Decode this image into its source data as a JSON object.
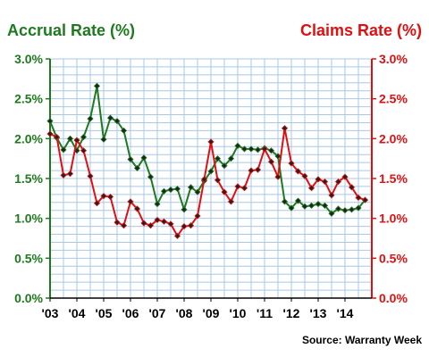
{
  "chart_data": {
    "type": "line",
    "left_title": "Accrual Rate (%)",
    "right_title": "Claims Rate (%)",
    "source": "Source: Warranty Week",
    "colors": {
      "accrual": "#1e7a1e",
      "claims": "#e01010",
      "grid": "#a9c8e6"
    },
    "x_range": [
      2003.0,
      2015.0
    ],
    "x_tick_labels": [
      "'03",
      "'04",
      "'05",
      "'06",
      "'07",
      "'08",
      "'09",
      "'10",
      "'11",
      "'12",
      "'13",
      "'14"
    ],
    "ylim_left": [
      0,
      3.0
    ],
    "ylim_right": [
      0,
      3.0
    ],
    "y_tick_values": [
      0.0,
      0.5,
      1.0,
      1.5,
      2.0,
      2.5,
      3.0
    ],
    "y_tick_labels": [
      "0.0%",
      "0.5%",
      "1.0%",
      "1.5%",
      "2.0%",
      "2.5%",
      "3.0%"
    ],
    "grid": true,
    "series": [
      {
        "key": "accrual",
        "axis": "left",
        "x": [
          2003.0,
          2003.25,
          2003.5,
          2003.75,
          2004.0,
          2004.25,
          2004.5,
          2004.75,
          2005.0,
          2005.25,
          2005.5,
          2005.75,
          2006.0,
          2006.25,
          2006.5,
          2006.75,
          2007.0,
          2007.25,
          2007.5,
          2007.75,
          2008.0,
          2008.25,
          2008.5,
          2008.75,
          2009.0,
          2009.25,
          2009.5,
          2009.75,
          2010.0,
          2010.25,
          2010.5,
          2010.75,
          2011.0,
          2011.25,
          2011.5,
          2011.75,
          2012.0,
          2012.25,
          2012.5,
          2012.75,
          2013.0,
          2013.25,
          2013.5,
          2013.75,
          2014.0,
          2014.25,
          2014.5,
          2014.75
        ],
        "values": [
          2.22,
          2.01,
          1.86,
          2.0,
          1.85,
          2.02,
          2.25,
          2.66,
          1.99,
          2.26,
          2.22,
          2.1,
          1.74,
          1.63,
          1.76,
          1.52,
          1.18,
          1.34,
          1.36,
          1.37,
          1.11,
          1.39,
          1.33,
          1.47,
          1.59,
          1.75,
          1.66,
          1.75,
          1.91,
          1.87,
          1.87,
          1.86,
          1.88,
          1.85,
          1.78,
          1.21,
          1.13,
          1.22,
          1.15,
          1.16,
          1.18,
          1.16,
          1.06,
          1.12,
          1.1,
          1.11,
          1.13,
          1.23
        ]
      },
      {
        "key": "claims",
        "axis": "right",
        "x": [
          2003.0,
          2003.25,
          2003.5,
          2003.75,
          2004.0,
          2004.25,
          2004.5,
          2004.75,
          2005.0,
          2005.25,
          2005.5,
          2005.75,
          2006.0,
          2006.25,
          2006.5,
          2006.75,
          2007.0,
          2007.25,
          2007.5,
          2007.75,
          2008.0,
          2008.25,
          2008.5,
          2008.75,
          2009.0,
          2009.25,
          2009.5,
          2009.75,
          2010.0,
          2010.25,
          2010.5,
          2010.75,
          2011.0,
          2011.25,
          2011.5,
          2011.75,
          2012.0,
          2012.25,
          2012.5,
          2012.75,
          2013.0,
          2013.25,
          2013.5,
          2013.75,
          2014.0,
          2014.25,
          2014.5,
          2014.75
        ],
        "values": [
          2.06,
          2.02,
          1.54,
          1.56,
          1.98,
          1.85,
          1.53,
          1.19,
          1.28,
          1.27,
          0.95,
          0.91,
          1.21,
          1.12,
          0.94,
          0.91,
          0.98,
          0.96,
          0.93,
          0.78,
          0.9,
          0.91,
          1.03,
          1.49,
          1.96,
          1.48,
          1.33,
          1.21,
          1.4,
          1.38,
          1.6,
          1.61,
          1.87,
          1.71,
          1.52,
          2.13,
          1.69,
          1.59,
          1.53,
          1.38,
          1.49,
          1.46,
          1.29,
          1.46,
          1.52,
          1.39,
          1.26,
          1.23
        ]
      }
    ]
  }
}
